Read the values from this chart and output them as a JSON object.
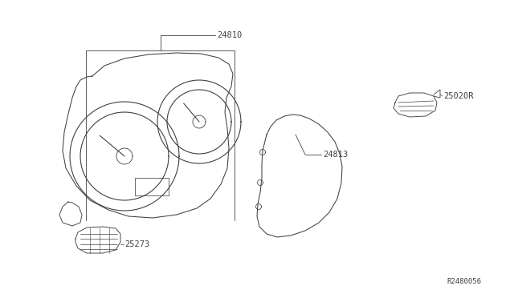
{
  "bg_color": "#ffffff",
  "line_color": "#404040",
  "text_color": "#404040",
  "label_24810": "24810",
  "label_24813": "24813",
  "label_25020R": "25020R",
  "label_25273": "25273",
  "label_R2480056": "R2480056",
  "font_size": 7.5
}
